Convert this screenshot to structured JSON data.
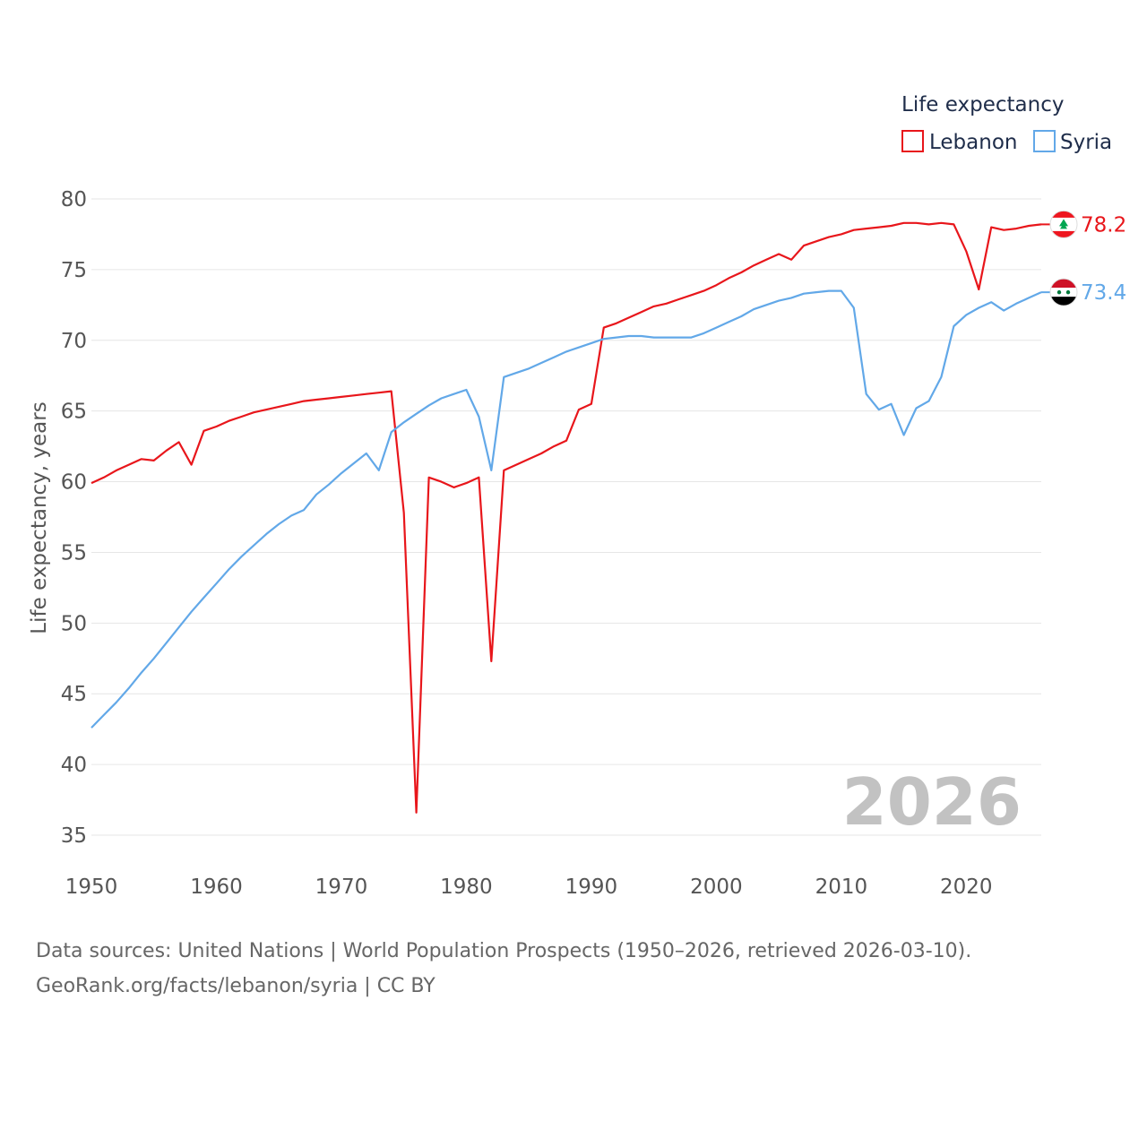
{
  "chart_data": {
    "type": "line",
    "title": "",
    "legend_title": "Life expectancy",
    "ylabel": "Life expectancy, years",
    "xlabel": "",
    "ylim": [
      35,
      80
    ],
    "xlim": [
      1950,
      2026
    ],
    "y_ticks": [
      35,
      40,
      45,
      50,
      55,
      60,
      65,
      70,
      75,
      80
    ],
    "x_ticks": [
      1950,
      1960,
      1970,
      1980,
      1990,
      2000,
      2010,
      2020
    ],
    "grid": true,
    "year_watermark": "2026",
    "legend_position": "top-right",
    "x": [
      1950,
      1951,
      1952,
      1953,
      1954,
      1955,
      1956,
      1957,
      1958,
      1959,
      1960,
      1961,
      1962,
      1963,
      1964,
      1965,
      1966,
      1967,
      1968,
      1969,
      1970,
      1971,
      1972,
      1973,
      1974,
      1975,
      1976,
      1977,
      1978,
      1979,
      1980,
      1981,
      1982,
      1983,
      1984,
      1985,
      1986,
      1987,
      1988,
      1989,
      1990,
      1991,
      1992,
      1993,
      1994,
      1995,
      1996,
      1997,
      1998,
      1999,
      2000,
      2001,
      2002,
      2003,
      2004,
      2005,
      2006,
      2007,
      2008,
      2009,
      2010,
      2011,
      2012,
      2013,
      2014,
      2015,
      2016,
      2017,
      2018,
      2019,
      2020,
      2021,
      2022,
      2023,
      2024,
      2025,
      2026
    ],
    "series": [
      {
        "name": "Lebanon",
        "color": "#e8161b",
        "flag": "lebanon-flag",
        "end_label": "78.2",
        "values": [
          59.9,
          60.3,
          60.8,
          61.2,
          61.6,
          61.5,
          62.2,
          62.8,
          61.2,
          63.6,
          63.9,
          64.3,
          64.6,
          64.9,
          65.1,
          65.3,
          65.5,
          65.7,
          65.8,
          65.9,
          66.0,
          66.1,
          66.2,
          66.3,
          66.4,
          57.8,
          36.6,
          60.3,
          60.0,
          59.6,
          59.9,
          60.3,
          47.3,
          60.8,
          61.2,
          61.6,
          62.0,
          62.5,
          62.9,
          65.1,
          65.5,
          70.9,
          71.2,
          71.6,
          72.0,
          72.4,
          72.6,
          72.9,
          73.2,
          73.5,
          73.9,
          74.4,
          74.8,
          75.3,
          75.7,
          76.1,
          75.7,
          76.7,
          77.0,
          77.3,
          77.5,
          77.8,
          77.9,
          78.0,
          78.1,
          78.3,
          78.3,
          78.2,
          78.3,
          78.2,
          76.3,
          73.6,
          78.0,
          77.8,
          77.9,
          78.1,
          78.2
        ]
      },
      {
        "name": "Syria",
        "color": "#62a8e8",
        "flag": "syria-flag",
        "end_label": "73.4",
        "values": [
          42.6,
          43.5,
          44.4,
          45.4,
          46.5,
          47.5,
          48.6,
          49.7,
          50.8,
          51.8,
          52.8,
          53.8,
          54.7,
          55.5,
          56.3,
          57.0,
          57.6,
          58.0,
          59.1,
          59.8,
          60.6,
          61.3,
          62.0,
          60.8,
          63.5,
          64.2,
          64.8,
          65.4,
          65.9,
          66.2,
          66.5,
          64.6,
          60.8,
          67.4,
          67.7,
          68.0,
          68.4,
          68.8,
          69.2,
          69.5,
          69.8,
          70.1,
          70.2,
          70.3,
          70.3,
          70.2,
          70.2,
          70.2,
          70.2,
          70.5,
          70.9,
          71.3,
          71.7,
          72.2,
          72.5,
          72.8,
          73.0,
          73.3,
          73.4,
          73.5,
          73.5,
          72.3,
          66.2,
          65.1,
          65.5,
          63.3,
          65.2,
          65.7,
          67.4,
          71.0,
          71.8,
          72.3,
          72.7,
          72.1,
          72.6,
          73.0,
          73.4
        ]
      }
    ]
  },
  "source": {
    "line1": "Data sources: United Nations | World Population Prospects (1950–2026, retrieved 2026-03-10).",
    "line2": "GeoRank.org/facts/lebanon/syria | CC BY"
  }
}
